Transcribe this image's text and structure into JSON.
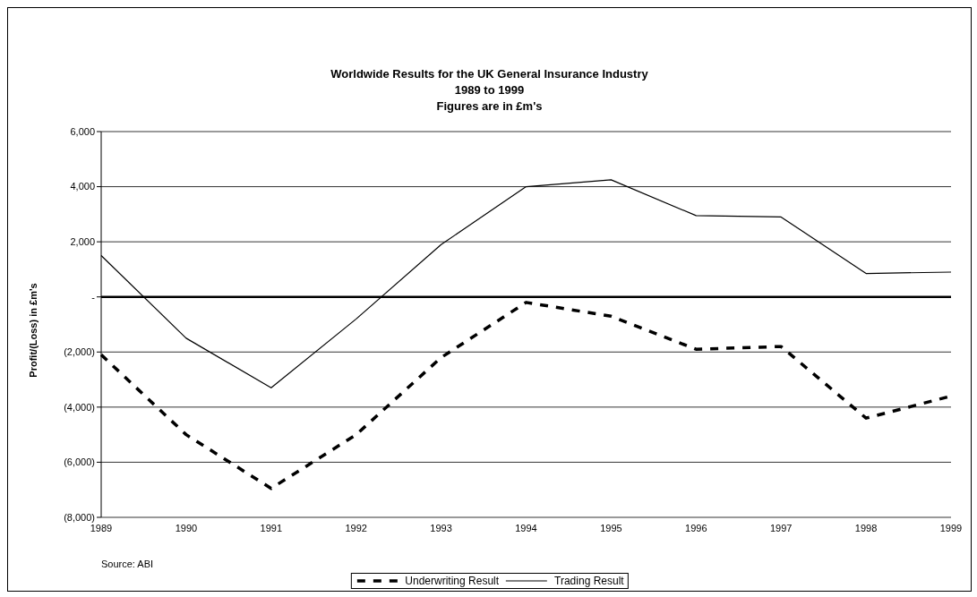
{
  "chart_data": {
    "type": "line",
    "title": "Worldwide Results for the UK General Insurance Industry\n1989 to 1999\nFigures are in £m's",
    "ylabel": "Profit/(Loss) in £m's",
    "categories": [
      "1989",
      "1990",
      "1991",
      "1992",
      "1993",
      "1994",
      "1995",
      "1996",
      "1997",
      "1998",
      "1999"
    ],
    "series": [
      {
        "name": "Underwriting Result",
        "color": "#000000",
        "line_style": "dashed",
        "values": [
          -2100,
          -5000,
          -6950,
          -5000,
          -2200,
          -200,
          -700,
          -1900,
          -1800,
          -4400,
          -3600
        ]
      },
      {
        "name": "Trading Result",
        "color": "#000000",
        "line_style": "solid",
        "values": [
          1500,
          -1500,
          -3300,
          -800,
          1900,
          4000,
          4250,
          2950,
          2900,
          850,
          900
        ]
      }
    ],
    "ylim": [
      -8000,
      6000
    ],
    "yticks": [
      {
        "value": -8000,
        "label": "(8,000)"
      },
      {
        "value": -6000,
        "label": "(6,000)"
      },
      {
        "value": -4000,
        "label": "(4,000)"
      },
      {
        "value": -2000,
        "label": "(2,000)"
      },
      {
        "value": 0,
        "label": "-"
      },
      {
        "value": 2000,
        "label": "2,000"
      },
      {
        "value": 4000,
        "label": "4,000"
      },
      {
        "value": 6000,
        "label": "6,000"
      }
    ],
    "ref_lines": [
      {
        "axis": "y",
        "value": 0,
        "color": "#000000"
      }
    ],
    "annotations": [
      "Source: ABI"
    ],
    "grid": "y",
    "legend": "bottom",
    "marker": "none"
  }
}
